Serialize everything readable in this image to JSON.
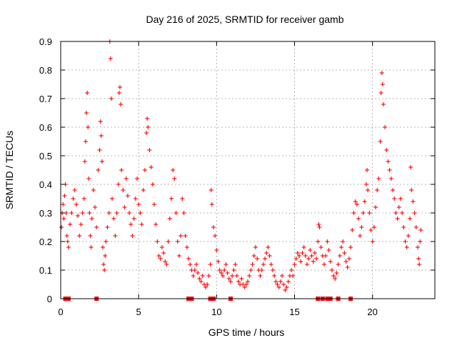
{
  "chart_data": {
    "type": "scatter",
    "title": "Day 216 of 2025, SRMTID for receiver gamb",
    "xlabel": "GPS time / hours",
    "ylabel": "SRMTID / TECUs",
    "xlim": [
      0,
      24
    ],
    "ylim": [
      0,
      0.9
    ],
    "xticks": [
      0,
      5,
      10,
      15,
      20
    ],
    "xtick_labels": [
      "0",
      "5",
      "10",
      "15",
      "20"
    ],
    "yticks": [
      0,
      0.1,
      0.2,
      0.3,
      0.4,
      0.5,
      0.6,
      0.7,
      0.8,
      0.9
    ],
    "ytick_labels": [
      "0",
      "0.1",
      "0.2",
      "0.3",
      "0.4",
      "0.5",
      "0.6",
      "0.7",
      "0.8",
      "0.9"
    ],
    "grid": true,
    "marker": "+",
    "series": [
      {
        "name": "SRMTID",
        "color": "#ff0000",
        "points": [
          [
            0.05,
            0.25
          ],
          [
            0.1,
            0.3
          ],
          [
            0.15,
            0.33
          ],
          [
            0.2,
            0.28
          ],
          [
            0.25,
            0.36
          ],
          [
            0.3,
            0.4
          ],
          [
            0.35,
            0.3
          ],
          [
            0.4,
            0.22
          ],
          [
            0.45,
            0.2
          ],
          [
            0.5,
            0.18
          ],
          [
            0.6,
            0.26
          ],
          [
            0.7,
            0.3
          ],
          [
            0.8,
            0.35
          ],
          [
            0.9,
            0.38
          ],
          [
            1.0,
            0.33
          ],
          [
            1.1,
            0.29
          ],
          [
            1.2,
            0.22
          ],
          [
            1.3,
            0.26
          ],
          [
            1.4,
            0.3
          ],
          [
            1.5,
            0.35
          ],
          [
            1.55,
            0.48
          ],
          [
            1.6,
            0.55
          ],
          [
            1.65,
            0.65
          ],
          [
            1.7,
            0.72
          ],
          [
            1.75,
            0.6
          ],
          [
            1.8,
            0.42
          ],
          [
            1.85,
            0.3
          ],
          [
            1.9,
            0.22
          ],
          [
            1.95,
            0.18
          ],
          [
            2.0,
            0.28
          ],
          [
            2.1,
            0.38
          ],
          [
            2.2,
            0.32
          ],
          [
            2.3,
            0.25
          ],
          [
            2.4,
            0.45
          ],
          [
            2.5,
            0.52
          ],
          [
            2.55,
            0.62
          ],
          [
            2.6,
            0.57
          ],
          [
            2.65,
            0.48
          ],
          [
            2.7,
            0.18
          ],
          [
            2.75,
            0.12
          ],
          [
            2.8,
            0.1
          ],
          [
            2.85,
            0.15
          ],
          [
            2.9,
            0.2
          ],
          [
            3.0,
            0.25
          ],
          [
            3.1,
            0.3
          ],
          [
            3.15,
            0.9
          ],
          [
            3.2,
            0.84
          ],
          [
            3.25,
            0.7
          ],
          [
            3.3,
            0.35
          ],
          [
            3.4,
            0.28
          ],
          [
            3.5,
            0.22
          ],
          [
            3.6,
            0.3
          ],
          [
            3.7,
            0.4
          ],
          [
            3.75,
            0.72
          ],
          [
            3.8,
            0.74
          ],
          [
            3.85,
            0.68
          ],
          [
            3.9,
            0.45
          ],
          [
            4.0,
            0.38
          ],
          [
            4.1,
            0.32
          ],
          [
            4.2,
            0.42
          ],
          [
            4.3,
            0.36
          ],
          [
            4.4,
            0.3
          ],
          [
            4.5,
            0.26
          ],
          [
            4.6,
            0.22
          ],
          [
            4.7,
            0.28
          ],
          [
            4.8,
            0.35
          ],
          [
            4.9,
            0.42
          ],
          [
            5.0,
            0.33
          ],
          [
            5.1,
            0.3
          ],
          [
            5.2,
            0.26
          ],
          [
            5.3,
            0.38
          ],
          [
            5.4,
            0.45
          ],
          [
            5.5,
            0.58
          ],
          [
            5.55,
            0.63
          ],
          [
            5.6,
            0.6
          ],
          [
            5.7,
            0.52
          ],
          [
            5.8,
            0.46
          ],
          [
            5.9,
            0.4
          ],
          [
            6.0,
            0.33
          ],
          [
            6.1,
            0.26
          ],
          [
            6.2,
            0.2
          ],
          [
            6.3,
            0.15
          ],
          [
            6.4,
            0.14
          ],
          [
            6.5,
            0.18
          ],
          [
            6.6,
            0.16
          ],
          [
            6.7,
            0.13
          ],
          [
            6.8,
            0.12
          ],
          [
            6.9,
            0.2
          ],
          [
            7.0,
            0.28
          ],
          [
            7.1,
            0.35
          ],
          [
            7.2,
            0.45
          ],
          [
            7.3,
            0.42
          ],
          [
            7.4,
            0.3
          ],
          [
            7.5,
            0.2
          ],
          [
            7.6,
            0.15
          ],
          [
            7.7,
            0.22
          ],
          [
            7.8,
            0.35
          ],
          [
            7.9,
            0.3
          ],
          [
            8.0,
            0.22
          ],
          [
            8.1,
            0.18
          ],
          [
            8.2,
            0.14
          ],
          [
            8.3,
            0.12
          ],
          [
            8.4,
            0.1
          ],
          [
            8.5,
            0.08
          ],
          [
            8.6,
            0.1
          ],
          [
            8.7,
            0.12
          ],
          [
            8.8,
            0.09
          ],
          [
            8.9,
            0.07
          ],
          [
            9.0,
            0.06
          ],
          [
            9.1,
            0.08
          ],
          [
            9.2,
            0.05
          ],
          [
            9.3,
            0.04
          ],
          [
            9.4,
            0.05
          ],
          [
            9.5,
            0.08
          ],
          [
            9.6,
            0.12
          ],
          [
            9.65,
            0.38
          ],
          [
            9.7,
            0.33
          ],
          [
            9.8,
            0.25
          ],
          [
            9.9,
            0.22
          ],
          [
            10.0,
            0.17
          ],
          [
            10.1,
            0.13
          ],
          [
            10.2,
            0.1
          ],
          [
            10.3,
            0.09
          ],
          [
            10.4,
            0.08
          ],
          [
            10.5,
            0.1
          ],
          [
            10.6,
            0.12
          ],
          [
            10.7,
            0.09
          ],
          [
            10.8,
            0.07
          ],
          [
            10.9,
            0.06
          ],
          [
            11.0,
            0.08
          ],
          [
            11.1,
            0.1
          ],
          [
            11.2,
            0.12
          ],
          [
            11.3,
            0.08
          ],
          [
            11.4,
            0.06
          ],
          [
            11.5,
            0.05
          ],
          [
            11.6,
            0.07
          ],
          [
            11.7,
            0.05
          ],
          [
            11.8,
            0.04
          ],
          [
            11.9,
            0.05
          ],
          [
            12.0,
            0.06
          ],
          [
            12.1,
            0.08
          ],
          [
            12.2,
            0.1
          ],
          [
            12.3,
            0.12
          ],
          [
            12.4,
            0.15
          ],
          [
            12.5,
            0.18
          ],
          [
            12.6,
            0.14
          ],
          [
            12.7,
            0.1
          ],
          [
            12.8,
            0.08
          ],
          [
            12.9,
            0.1
          ],
          [
            13.0,
            0.12
          ],
          [
            13.1,
            0.14
          ],
          [
            13.2,
            0.16
          ],
          [
            13.3,
            0.18
          ],
          [
            13.4,
            0.15
          ],
          [
            13.5,
            0.12
          ],
          [
            13.6,
            0.1
          ],
          [
            13.7,
            0.08
          ],
          [
            13.8,
            0.06
          ],
          [
            13.9,
            0.05
          ],
          [
            14.0,
            0.04
          ],
          [
            14.1,
            0.06
          ],
          [
            14.2,
            0.08
          ],
          [
            14.3,
            0.05
          ],
          [
            14.4,
            0.03
          ],
          [
            14.5,
            0.04
          ],
          [
            14.6,
            0.06
          ],
          [
            14.7,
            0.08
          ],
          [
            14.8,
            0.1
          ],
          [
            14.9,
            0.08
          ],
          [
            15.0,
            0.12
          ],
          [
            15.1,
            0.14
          ],
          [
            15.2,
            0.16
          ],
          [
            15.3,
            0.15
          ],
          [
            15.4,
            0.13
          ],
          [
            15.5,
            0.16
          ],
          [
            15.6,
            0.18
          ],
          [
            15.7,
            0.15
          ],
          [
            15.8,
            0.12
          ],
          [
            15.9,
            0.14
          ],
          [
            16.0,
            0.17
          ],
          [
            16.1,
            0.15
          ],
          [
            16.2,
            0.13
          ],
          [
            16.3,
            0.16
          ],
          [
            16.4,
            0.14
          ],
          [
            16.5,
            0.2
          ],
          [
            16.55,
            0.26
          ],
          [
            16.6,
            0.25
          ],
          [
            16.7,
            0.18
          ],
          [
            16.8,
            0.15
          ],
          [
            16.9,
            0.12
          ],
          [
            17.0,
            0.15
          ],
          [
            17.1,
            0.2
          ],
          [
            17.2,
            0.17
          ],
          [
            17.3,
            0.13
          ],
          [
            17.4,
            0.1
          ],
          [
            17.5,
            0.08
          ],
          [
            17.6,
            0.07
          ],
          [
            17.7,
            0.09
          ],
          [
            17.8,
            0.12
          ],
          [
            17.9,
            0.15
          ],
          [
            18.0,
            0.18
          ],
          [
            18.1,
            0.2
          ],
          [
            18.2,
            0.16
          ],
          [
            18.3,
            0.13
          ],
          [
            18.4,
            0.11
          ],
          [
            18.5,
            0.14
          ],
          [
            18.6,
            0.18
          ],
          [
            18.7,
            0.24
          ],
          [
            18.8,
            0.3
          ],
          [
            18.9,
            0.34
          ],
          [
            19.0,
            0.33
          ],
          [
            19.1,
            0.28
          ],
          [
            19.2,
            0.22
          ],
          [
            19.3,
            0.25
          ],
          [
            19.4,
            0.3
          ],
          [
            19.5,
            0.34
          ],
          [
            19.6,
            0.4
          ],
          [
            19.65,
            0.45
          ],
          [
            19.7,
            0.38
          ],
          [
            19.8,
            0.3
          ],
          [
            19.9,
            0.24
          ],
          [
            20.0,
            0.2
          ],
          [
            20.1,
            0.25
          ],
          [
            20.2,
            0.32
          ],
          [
            20.3,
            0.38
          ],
          [
            20.4,
            0.42
          ],
          [
            20.5,
            0.55
          ],
          [
            20.55,
            0.72
          ],
          [
            20.6,
            0.79
          ],
          [
            20.65,
            0.75
          ],
          [
            20.7,
            0.68
          ],
          [
            20.8,
            0.6
          ],
          [
            20.9,
            0.52
          ],
          [
            21.0,
            0.48
          ],
          [
            21.1,
            0.45
          ],
          [
            21.2,
            0.42
          ],
          [
            21.3,
            0.38
          ],
          [
            21.4,
            0.35
          ],
          [
            21.5,
            0.3
          ],
          [
            21.6,
            0.28
          ],
          [
            21.7,
            0.32
          ],
          [
            21.8,
            0.35
          ],
          [
            21.9,
            0.3
          ],
          [
            22.0,
            0.25
          ],
          [
            22.1,
            0.2
          ],
          [
            22.2,
            0.18
          ],
          [
            22.3,
            0.22
          ],
          [
            22.4,
            0.28
          ],
          [
            22.45,
            0.46
          ],
          [
            22.5,
            0.38
          ],
          [
            22.6,
            0.34
          ],
          [
            22.7,
            0.3
          ],
          [
            22.8,
            0.25
          ],
          [
            22.9,
            0.18
          ],
          [
            22.95,
            0.14
          ],
          [
            23.0,
            0.12
          ],
          [
            23.05,
            0.2
          ],
          [
            23.1,
            0.24
          ]
        ],
        "zero_points_x": [
          0.3,
          0.4,
          0.5,
          2.3,
          8.2,
          8.4,
          9.6,
          9.8,
          10.9,
          16.5,
          16.8,
          17.1,
          17.3,
          17.8,
          18.6
        ]
      }
    ]
  }
}
